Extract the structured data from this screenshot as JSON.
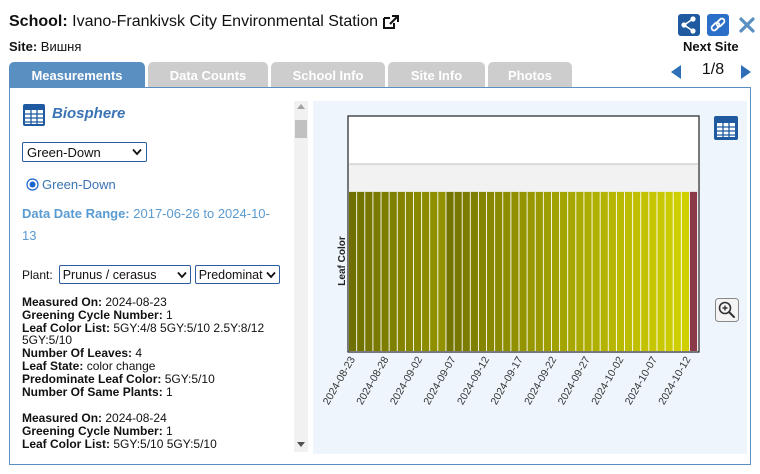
{
  "header": {
    "school_label": "School:",
    "school_name": "Ivano-Frankivsk City Environmental Station",
    "site_label": "Site:",
    "site_name": "Вишня",
    "next_site_label": "Next Site",
    "page_indicator": "1/8",
    "icons": [
      "external-link-icon",
      "share-icon",
      "link-icon",
      "close-icon",
      "prev-arrow-icon",
      "next-arrow-icon"
    ]
  },
  "tabs": [
    {
      "label": "Measurements",
      "active": true
    },
    {
      "label": "Data Counts",
      "active": false
    },
    {
      "label": "School Info",
      "active": false
    },
    {
      "label": "Site Info",
      "active": false
    },
    {
      "label": "Photos",
      "active": false
    }
  ],
  "left": {
    "section_title": "Biosphere",
    "protocol_selected": "Green-Down",
    "radio_label": "Green-Down",
    "date_range_label": "Data Date Range:",
    "date_range_value": "2017-06-26 to 2024-10-13",
    "plant_label": "Plant:",
    "plant_selected": "Prunus / cerasus",
    "predominate_selected": "Predominate",
    "measurements": [
      {
        "measured_on_label": "Measured On:",
        "measured_on": "2024-08-23",
        "greening_label": "Greening Cycle Number:",
        "greening": "1",
        "leaf_color_list_label": "Leaf Color List:",
        "leaf_color_list": "5GY:4/8 5GY:5/10 2.5Y:8/12 5GY:5/10",
        "num_leaves_label": "Number Of Leaves:",
        "num_leaves": "4",
        "leaf_state_label": "Leaf State:",
        "leaf_state": "color change",
        "pred_color_label": "Predominate Leaf Color:",
        "pred_color": "5GY:5/10",
        "same_plants_label": "Number Of Same Plants:",
        "same_plants": "1"
      },
      {
        "measured_on_label": "Measured On:",
        "measured_on": "2024-08-24",
        "greening_label": "Greening Cycle Number:",
        "greening": "1",
        "leaf_color_list_label": "Leaf Color List:",
        "leaf_color_list": "5GY:5/10 5GY:5/10"
      }
    ]
  },
  "colors": {
    "accent": "#5a8fc1",
    "tab_inactive": "#cdcdcd",
    "chart_bg": "#eef5fc",
    "bar_last": "#8b3a4a"
  },
  "chart_data": {
    "type": "bar",
    "ylabel": "Leaf Color",
    "x_tick_labels": [
      "2024-08-23",
      "2024-08-28",
      "2024-09-02",
      "2024-09-07",
      "2024-09-12",
      "2024-09-17",
      "2024-09-22",
      "2024-09-27",
      "2024-10-02",
      "2024-10-07",
      "2024-10-12"
    ],
    "x_start": "2024-08-23",
    "x_end": "2024-10-13",
    "y_value_fraction": 0.68,
    "bar_colors": [
      "#707000",
      "#737300",
      "#767600",
      "#7a7a00",
      "#7d7d00",
      "#808000",
      "#838300",
      "#868600",
      "#898900",
      "#8c8c00",
      "#8f8f00",
      "#929200",
      "#747400",
      "#787800",
      "#7c7c00",
      "#808000",
      "#848400",
      "#878700",
      "#8a8a00",
      "#8d8d00",
      "#919100",
      "#949400",
      "#979700",
      "#9a9a00",
      "#9e9e00",
      "#a1a100",
      "#a4a400",
      "#a7a700",
      "#aaaa00",
      "#adad00",
      "#b0b000",
      "#b3b300",
      "#b6b600",
      "#b9b900",
      "#bcbc00",
      "#bfbf00",
      "#c2c200",
      "#c5c500",
      "#c8c800",
      "#cbcb00",
      "#cece00",
      "#d0d000",
      "#8b3a4a"
    ],
    "grid": true,
    "legend": "none"
  }
}
